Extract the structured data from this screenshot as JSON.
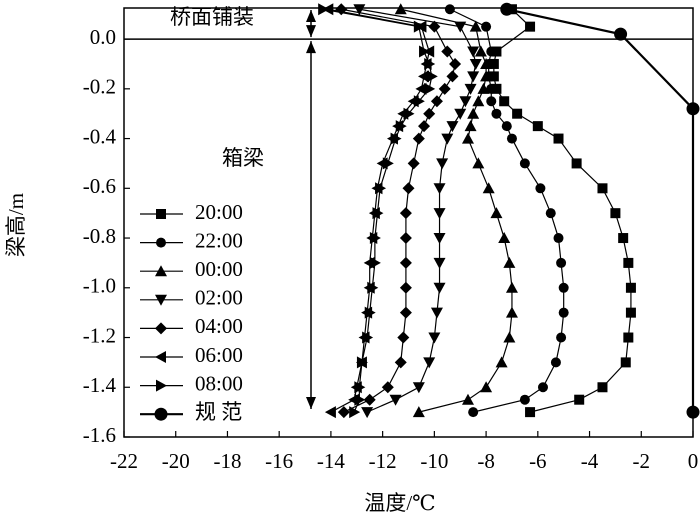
{
  "chart_data": {
    "type": "line",
    "xlabel": "温度/℃",
    "ylabel": "梁高/m",
    "annotations": [
      "桥面铺装",
      "箱梁"
    ],
    "xlim": [
      -22,
      0
    ],
    "xticks": [
      -22,
      -20,
      -18,
      -16,
      -14,
      -12,
      -10,
      -8,
      -6,
      -4,
      -2,
      0
    ],
    "ylim": [
      -1.6,
      0.125
    ],
    "yticks": [
      {
        "value": 0,
        "label": "0.0"
      },
      {
        "value": -0.2,
        "label": "-0.2"
      },
      {
        "value": -0.4,
        "label": "-0.4"
      },
      {
        "value": -0.6,
        "label": "-0.6"
      },
      {
        "value": -0.8,
        "label": "-0.8"
      },
      {
        "value": -1.0,
        "label": "-1.0"
      },
      {
        "value": -1.2,
        "label": "-1.2"
      },
      {
        "value": -1.4,
        "label": "-1.4"
      },
      {
        "value": -1.6,
        "label": "-1.6"
      }
    ],
    "series": [
      {
        "name": "20:00",
        "color": "#000000",
        "marker": "square",
        "x": [
          -7.0,
          -6.3,
          -7.6,
          -7.7,
          -7.7,
          -7.6,
          -7.3,
          -6.8,
          -6.0,
          -5.2,
          -4.5,
          -3.5,
          -3.0,
          -2.7,
          -2.5,
          -2.4,
          -2.4,
          -2.5,
          -2.6,
          -3.5,
          -4.4,
          -6.3
        ],
        "values": [
          0.12,
          0.05,
          -0.05,
          -0.1,
          -0.15,
          -0.2,
          -0.25,
          -0.3,
          -0.35,
          -0.4,
          -0.5,
          -0.6,
          -0.7,
          -0.8,
          -0.9,
          -1.0,
          -1.1,
          -1.2,
          -1.3,
          -1.4,
          -1.45,
          -1.5
        ]
      },
      {
        "name": "22:00",
        "color": "#000000",
        "marker": "circle",
        "x": [
          -9.4,
          -8.0,
          -7.8,
          -7.9,
          -7.9,
          -7.8,
          -7.8,
          -7.6,
          -7.2,
          -7.0,
          -6.5,
          -5.9,
          -5.5,
          -5.2,
          -5.1,
          -5.0,
          -5.0,
          -5.1,
          -5.3,
          -5.8,
          -6.5,
          -8.5
        ],
        "values": [
          0.12,
          0.05,
          -0.05,
          -0.1,
          -0.15,
          -0.2,
          -0.25,
          -0.3,
          -0.35,
          -0.4,
          -0.5,
          -0.6,
          -0.7,
          -0.8,
          -0.9,
          -1.0,
          -1.1,
          -1.2,
          -1.3,
          -1.4,
          -1.45,
          -1.5
        ]
      },
      {
        "name": "00:00",
        "color": "#000000",
        "marker": "triangle-up",
        "x": [
          -11.3,
          -8.4,
          -8.2,
          -8.0,
          -8.0,
          -8.1,
          -8.3,
          -8.5,
          -8.6,
          -8.7,
          -8.3,
          -7.9,
          -7.6,
          -7.3,
          -7.1,
          -7.0,
          -7.0,
          -7.1,
          -7.4,
          -8.0,
          -8.7,
          -10.6
        ],
        "values": [
          0.12,
          0.05,
          -0.05,
          -0.1,
          -0.15,
          -0.2,
          -0.25,
          -0.3,
          -0.35,
          -0.4,
          -0.5,
          -0.6,
          -0.7,
          -0.8,
          -0.9,
          -1.0,
          -1.1,
          -1.2,
          -1.3,
          -1.4,
          -1.45,
          -1.5
        ]
      },
      {
        "name": "02:00",
        "color": "#000000",
        "marker": "triangle-down",
        "x": [
          -12.9,
          -9.0,
          -8.5,
          -8.4,
          -8.5,
          -8.6,
          -8.8,
          -9.0,
          -9.3,
          -9.5,
          -9.7,
          -9.8,
          -9.8,
          -9.8,
          -9.8,
          -9.8,
          -9.9,
          -10.0,
          -10.2,
          -10.6,
          -11.5,
          -12.6
        ],
        "values": [
          0.12,
          0.05,
          -0.05,
          -0.1,
          -0.15,
          -0.2,
          -0.25,
          -0.3,
          -0.35,
          -0.4,
          -0.5,
          -0.6,
          -0.7,
          -0.8,
          -0.9,
          -1.0,
          -1.1,
          -1.2,
          -1.3,
          -1.4,
          -1.45,
          -1.5
        ]
      },
      {
        "name": "04:00",
        "color": "#000000",
        "marker": "diamond",
        "x": [
          -13.6,
          -10.0,
          -9.5,
          -9.2,
          -9.3,
          -9.6,
          -9.9,
          -10.2,
          -10.4,
          -10.6,
          -10.8,
          -11.0,
          -11.1,
          -11.1,
          -11.1,
          -11.1,
          -11.1,
          -11.2,
          -11.3,
          -11.8,
          -12.5,
          -13.5
        ],
        "values": [
          0.12,
          0.05,
          -0.05,
          -0.1,
          -0.15,
          -0.2,
          -0.25,
          -0.3,
          -0.35,
          -0.4,
          -0.5,
          -0.6,
          -0.7,
          -0.8,
          -0.9,
          -1.0,
          -1.1,
          -1.2,
          -1.3,
          -1.4,
          -1.45,
          -1.5
        ]
      },
      {
        "name": "06:00",
        "color": "#000000",
        "marker": "triangle-left",
        "x": [
          -14.1,
          -10.5,
          -10.2,
          -10.3,
          -10.4,
          -10.5,
          -10.8,
          -11.2,
          -11.4,
          -11.6,
          -12.0,
          -12.2,
          -12.3,
          -12.4,
          -12.5,
          -12.5,
          -12.6,
          -12.7,
          -12.8,
          -13.0,
          -13.1,
          -14.0
        ],
        "values": [
          0.12,
          0.05,
          -0.05,
          -0.1,
          -0.15,
          -0.2,
          -0.25,
          -0.3,
          -0.35,
          -0.4,
          -0.5,
          -0.6,
          -0.7,
          -0.8,
          -0.9,
          -1.0,
          -1.1,
          -1.2,
          -1.3,
          -1.4,
          -1.45,
          -1.5
        ]
      },
      {
        "name": "08:00",
        "color": "#000000",
        "marker": "triangle-right",
        "x": [
          -14.3,
          -10.6,
          -10.4,
          -10.2,
          -10.1,
          -10.2,
          -10.6,
          -11.0,
          -11.3,
          -11.5,
          -11.8,
          -12.1,
          -12.2,
          -12.3,
          -12.3,
          -12.4,
          -12.5,
          -12.6,
          -12.8,
          -12.9,
          -12.9,
          -13.1
        ],
        "values": [
          0.12,
          0.05,
          -0.05,
          -0.1,
          -0.15,
          -0.2,
          -0.25,
          -0.3,
          -0.35,
          -0.4,
          -0.5,
          -0.6,
          -0.7,
          -0.8,
          -0.9,
          -1.0,
          -1.1,
          -1.2,
          -1.3,
          -1.4,
          -1.45,
          -1.5
        ]
      },
      {
        "name": "规 范",
        "color": "#000000",
        "marker": "big-circle",
        "x": [
          -7.2,
          -2.8,
          0,
          0
        ],
        "values": [
          0.12,
          0.02,
          -0.28,
          -1.5
        ]
      }
    ]
  }
}
